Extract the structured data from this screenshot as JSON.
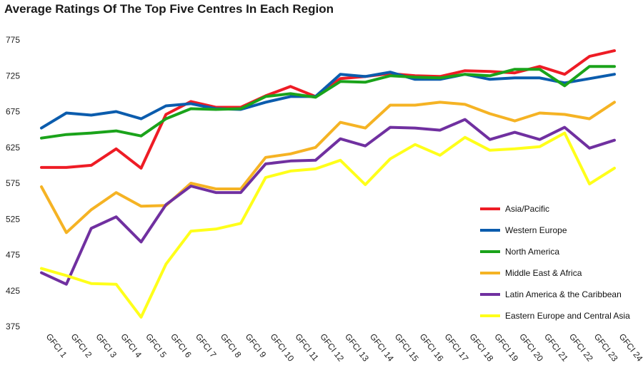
{
  "chart_data": {
    "type": "line",
    "title": "Average Ratings Of The Top Five Centres In Each Region",
    "xlabel": "",
    "ylabel": "",
    "categories": [
      "GFCI 1",
      "GFCI 2",
      "GFCI 3",
      "GFCI 4",
      "GFCI 5",
      "GFCI 6",
      "GFCI 7",
      "GFCI 8",
      "GFCI 9",
      "GFCI 10",
      "GFCI 11",
      "GFCI 12",
      "GFCI 13",
      "GFCI 14",
      "GFCI 15",
      "GFCI 16",
      "GFCI 17",
      "GFCI 18",
      "GFCI 19",
      "GFCI 20",
      "GFCI 21",
      "GFCI 22",
      "GFCI 23",
      "GFCI 24"
    ],
    "ylim": [
      375,
      775
    ],
    "yticks": [
      375,
      425,
      475,
      525,
      575,
      625,
      675,
      725,
      775
    ],
    "grid": false,
    "legend_position": "right",
    "series": [
      {
        "name": "Asia/Pacific",
        "color": "#ee1c25",
        "values": [
          597,
          597,
          600,
          623,
          596,
          671,
          689,
          681,
          681,
          697,
          710,
          696,
          721,
          724,
          728,
          725,
          724,
          732,
          731,
          729,
          738,
          727,
          752,
          760
        ]
      },
      {
        "name": "Western Europe",
        "color": "#0b5cad",
        "values": [
          652,
          673,
          670,
          675,
          665,
          683,
          686,
          679,
          678,
          688,
          696,
          696,
          727,
          724,
          730,
          720,
          720,
          727,
          720,
          722,
          722,
          715,
          721,
          727
        ]
      },
      {
        "name": "North America",
        "color": "#1aa31a",
        "values": [
          638,
          643,
          645,
          648,
          641,
          665,
          679,
          678,
          679,
          696,
          700,
          695,
          717,
          716,
          725,
          723,
          722,
          727,
          725,
          734,
          734,
          711,
          738,
          738
        ]
      },
      {
        "name": "Middle East & Africa",
        "color": "#f5b324",
        "values": [
          570,
          506,
          538,
          562,
          543,
          544,
          575,
          567,
          567,
          611,
          616,
          625,
          660,
          652,
          684,
          684,
          688,
          685,
          672,
          662,
          673,
          671,
          665,
          688
        ]
      },
      {
        "name": "Latin America & the Caribbean",
        "color": "#7030a0",
        "values": [
          450,
          434,
          512,
          528,
          493,
          545,
          571,
          562,
          562,
          602,
          606,
          607,
          637,
          627,
          653,
          652,
          649,
          664,
          636,
          646,
          636,
          653,
          624,
          635
        ]
      },
      {
        "name": "Eastern Europe and Central Asia",
        "color": "#ffff1a",
        "values": [
          456,
          446,
          435,
          434,
          388,
          462,
          508,
          511,
          519,
          583,
          592,
          595,
          607,
          573,
          609,
          629,
          614,
          639,
          621,
          623,
          626,
          645,
          574,
          596
        ]
      }
    ]
  }
}
